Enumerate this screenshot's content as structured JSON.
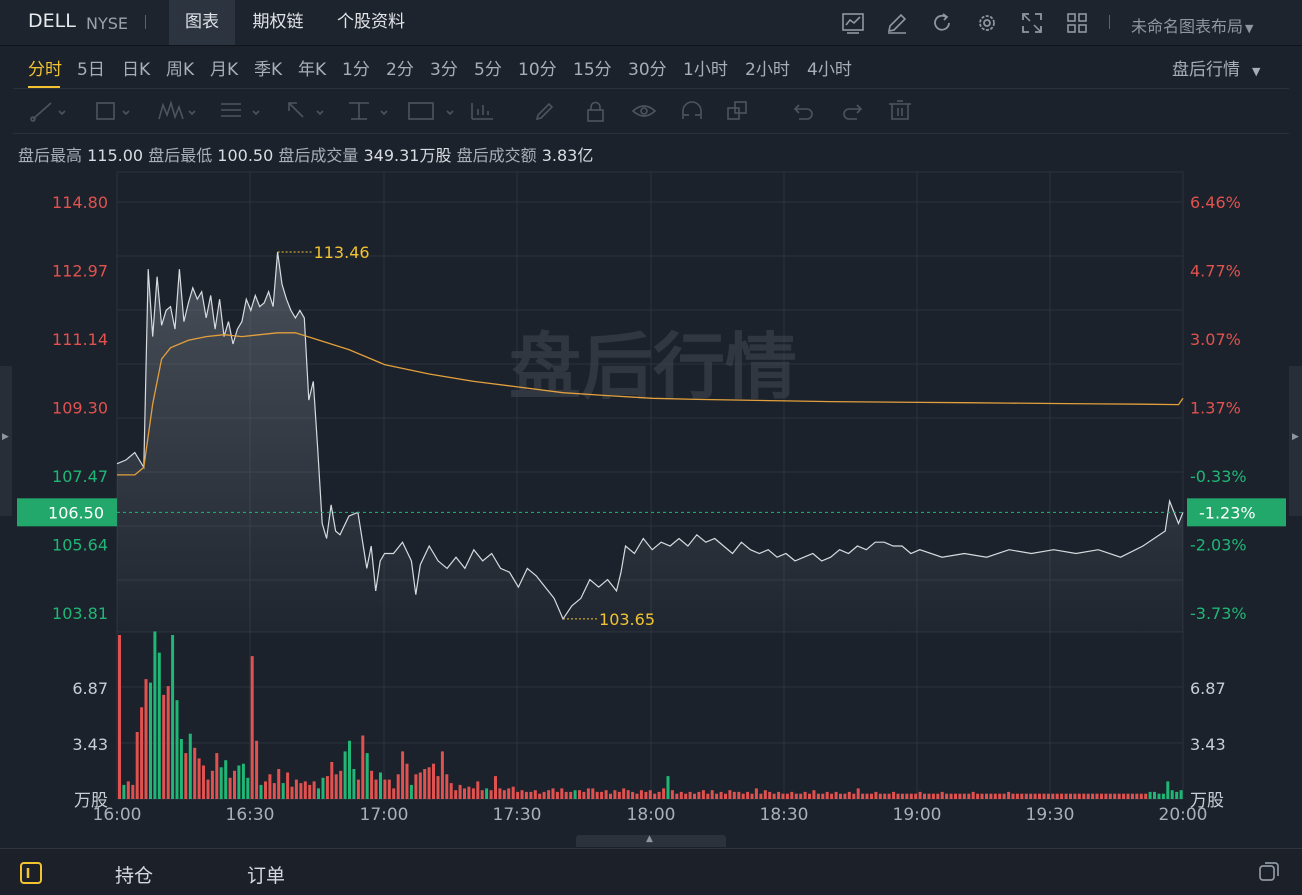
{
  "header": {
    "symbol": "DELL",
    "exchange": "NYSE",
    "tabs": [
      "图表",
      "期权链",
      "个股资料"
    ],
    "active_tab": "图表",
    "layout_name": "未命名图表布局",
    "tools": [
      "indicator-icon",
      "draw-icon",
      "refresh-icon",
      "settings-icon",
      "fullscreen-icon",
      "grid-layout-icon"
    ]
  },
  "periods": {
    "items": [
      "分时",
      "5日",
      "日K",
      "周K",
      "月K",
      "季K",
      "年K",
      "1分",
      "2分",
      "3分",
      "5分",
      "10分",
      "15分",
      "30分",
      "1小时",
      "2小时",
      "4小时"
    ],
    "active": "分时",
    "after_hours_label": "盘后行情"
  },
  "drawing_tools": [
    "line-tool-icon",
    "rect-tool-icon",
    "pattern-tool-icon",
    "fib-tool-icon",
    "arrow-tool-icon",
    "measure-tool-icon",
    "text-tool-icon",
    "chart-tool-icon",
    "pen-icon",
    "lock-icon",
    "eye-icon",
    "magnet-icon",
    "layers-icon",
    "undo-icon",
    "redo-icon",
    "trash-icon"
  ],
  "stats": {
    "high_label": "盘后最高",
    "high_value": "115.00",
    "low_label": "盘后最低",
    "low_value": "100.50",
    "volume_label": "盘后成交量",
    "volume_value": "349.31万股",
    "amount_label": "盘后成交额",
    "amount_value": "3.83亿"
  },
  "watermark": "盘后行情",
  "bottom": {
    "tabs": [
      "持仓",
      "订单"
    ]
  },
  "colors": {
    "up": "#e0524f",
    "down": "#1fb676",
    "price_line": "#d7dbe0",
    "avg_line": "#e2a03d",
    "accent": "#f2c230",
    "current_badge": "#22a86b"
  },
  "chart_data": {
    "type": "line",
    "current_price": "106.50",
    "current_pct": "-1.23%",
    "ylim": [
      103.3,
      115.6
    ],
    "price_ticks": [
      "114.80",
      "112.97",
      "111.14",
      "109.30",
      "107.47",
      "105.64",
      "103.81"
    ],
    "pct_ticks": [
      "6.46%",
      "4.77%",
      "3.07%",
      "1.37%",
      "-0.33%",
      "-2.03%",
      "-3.73%"
    ],
    "volume_ticks": [
      "6.87",
      "3.43"
    ],
    "volume_unit": "万股",
    "x_ticks": [
      "16:00",
      "16:30",
      "17:00",
      "17:30",
      "18:00",
      "18:30",
      "19:00",
      "19:30",
      "20:00"
    ],
    "max_label": "113.46",
    "min_label": "103.65",
    "series": [
      {
        "x": [
          0,
          2,
          4,
          6,
          7,
          8,
          9,
          10,
          11,
          12,
          13,
          14,
          15,
          16,
          17,
          18,
          19,
          20,
          21,
          22,
          23,
          24,
          25,
          26,
          27,
          28,
          29,
          30,
          31,
          32,
          33,
          34,
          35,
          36,
          37,
          38,
          39,
          40,
          41,
          42,
          43,
          44,
          45,
          46,
          47,
          48,
          49,
          50,
          52,
          54,
          56,
          57,
          58,
          59,
          60,
          62,
          64,
          66,
          67,
          68,
          70,
          72,
          74,
          76,
          78,
          80,
          82,
          84,
          86,
          88,
          90,
          92,
          94,
          96,
          98,
          100,
          102,
          104,
          106,
          108,
          110,
          112,
          113,
          114,
          116,
          118,
          120,
          122,
          124,
          126,
          128,
          130,
          132,
          134,
          136,
          138,
          140,
          142,
          144,
          146,
          148,
          150,
          152,
          154,
          156,
          158,
          160,
          162,
          164,
          166,
          168,
          170,
          172,
          174,
          176,
          178,
          180,
          185,
          190,
          195,
          200,
          205,
          210,
          215,
          220,
          225,
          230,
          235,
          236,
          238,
          239
        ],
        "values": [
          107.8,
          107.9,
          108.1,
          107.7,
          113.0,
          111.2,
          112.8,
          111.5,
          111.9,
          112.0,
          111.4,
          113.0,
          111.6,
          112.1,
          112.5,
          112.2,
          112.4,
          111.7,
          112.3,
          111.4,
          112.2,
          111.2,
          111.6,
          111.0,
          111.4,
          111.6,
          112.2,
          111.9,
          112.3,
          112.0,
          112.1,
          112.4,
          112.0,
          113.46,
          112.6,
          112.2,
          111.9,
          111.7,
          111.9,
          111.7,
          109.5,
          110.0,
          108.2,
          106.2,
          105.8,
          106.7,
          106.0,
          105.9,
          106.4,
          106.5,
          105.0,
          105.6,
          104.4,
          105.2,
          105.4,
          105.4,
          105.7,
          105.2,
          104.3,
          105.1,
          105.6,
          105.2,
          105.0,
          105.3,
          105.0,
          105.5,
          105.2,
          105.4,
          105.0,
          104.9,
          104.5,
          105.0,
          104.8,
          104.5,
          104.2,
          103.65,
          104.0,
          104.2,
          104.7,
          104.5,
          104.7,
          104.4,
          104.9,
          105.6,
          105.4,
          105.8,
          105.5,
          105.7,
          105.6,
          105.8,
          105.6,
          105.9,
          105.7,
          105.8,
          105.6,
          105.4,
          105.7,
          105.5,
          105.4,
          105.5,
          105.3,
          105.4,
          105.2,
          105.3,
          105.4,
          105.2,
          105.3,
          105.5,
          105.4,
          105.6,
          105.5,
          105.7,
          105.7,
          105.6,
          105.6,
          105.4,
          105.5,
          105.3,
          105.4,
          105.3,
          105.5,
          105.4,
          105.5,
          105.4,
          105.5,
          105.3,
          105.6,
          106.0,
          106.8,
          106.2,
          106.5
        ],
        "color": "#d7dbe0"
      },
      {
        "x": [
          0,
          4,
          6,
          8,
          10,
          12,
          16,
          20,
          24,
          28,
          32,
          36,
          40,
          44,
          48,
          52,
          56,
          60,
          70,
          80,
          90,
          100,
          110,
          120,
          130,
          140,
          150,
          160,
          170,
          180,
          190,
          200,
          210,
          220,
          230,
          238,
          239
        ],
        "values": [
          107.5,
          107.5,
          107.7,
          109.4,
          110.6,
          110.9,
          111.1,
          111.2,
          111.25,
          111.2,
          111.25,
          111.3,
          111.3,
          111.15,
          111.0,
          110.85,
          110.65,
          110.45,
          110.2,
          110.0,
          109.85,
          109.7,
          109.62,
          109.55,
          109.52,
          109.5,
          109.48,
          109.46,
          109.45,
          109.44,
          109.43,
          109.42,
          109.41,
          109.4,
          109.39,
          109.38,
          109.55
        ],
        "color": "#e2a03d"
      }
    ],
    "volume": {
      "ymax": 7.2,
      "values": [
        9.3,
        0.8,
        1.0,
        0.8,
        3.8,
        5.2,
        6.8,
        6.6,
        9.5,
        8.3,
        5.9,
        6.4,
        9.3,
        5.6,
        3.4,
        2.6,
        3.7,
        2.9,
        2.3,
        1.9,
        1.1,
        1.6,
        2.6,
        1.8,
        2.2,
        1.2,
        1.6,
        1.9,
        2.0,
        1.2,
        8.1,
        3.3,
        0.8,
        1.0,
        1.4,
        0.9,
        1.7,
        0.9,
        1.5,
        0.7,
        1.1,
        0.9,
        1.0,
        0.8,
        1.0,
        0.6,
        1.2,
        1.3,
        2.1,
        1.4,
        1.6,
        2.7,
        3.3,
        1.7,
        1.1,
        3.6,
        2.6,
        1.6,
        1.1,
        1.5,
        1.1,
        1.1,
        0.6,
        1.4,
        2.7,
        2.0,
        0.8,
        1.4,
        1.5,
        1.7,
        1.8,
        2.0,
        1.3,
        2.7,
        1.4,
        0.9,
        0.5,
        0.8,
        0.6,
        0.7,
        0.6,
        1.0,
        0.5,
        0.6,
        0.5,
        1.3,
        0.6,
        0.5,
        0.6,
        0.7,
        0.4,
        0.5,
        0.4,
        0.4,
        0.5,
        0.3,
        0.4,
        0.5,
        0.6,
        0.4,
        0.6,
        0.4,
        0.4,
        0.5,
        0.5,
        0.4,
        0.6,
        0.6,
        0.4,
        0.4,
        0.5,
        0.3,
        0.5,
        0.4,
        0.6,
        0.5,
        0.4,
        0.3,
        0.5,
        0.4,
        0.5,
        0.3,
        0.4,
        0.6,
        1.3,
        0.5,
        0.3,
        0.4,
        0.3,
        0.4,
        0.3,
        0.4,
        0.5,
        0.3,
        0.5,
        0.3,
        0.4,
        0.3,
        0.5,
        0.4,
        0.4,
        0.3,
        0.4,
        0.3,
        0.6,
        0.3,
        0.5,
        0.4,
        0.3,
        0.4,
        0.3,
        0.3,
        0.4,
        0.3,
        0.3,
        0.4,
        0.3,
        0.5,
        0.3,
        0.3,
        0.4,
        0.3,
        0.4,
        0.3,
        0.3,
        0.4,
        0.3,
        0.6,
        0.3,
        0.3,
        0.3,
        0.4,
        0.3,
        0.3,
        0.3,
        0.4,
        0.3,
        0.3,
        0.3,
        0.3,
        0.3,
        0.4,
        0.3,
        0.3,
        0.3,
        0.3,
        0.4,
        0.3,
        0.3,
        0.3,
        0.3,
        0.3,
        0.3,
        0.4,
        0.3,
        0.3,
        0.3,
        0.3,
        0.3,
        0.3,
        0.3,
        0.4,
        0.3,
        0.3,
        0.3,
        0.3,
        0.3,
        0.3,
        0.3,
        0.3,
        0.3,
        0.3,
        0.3,
        0.3,
        0.3,
        0.3,
        0.3,
        0.3,
        0.3,
        0.3,
        0.3,
        0.3,
        0.3,
        0.3,
        0.3,
        0.3,
        0.3,
        0.3,
        0.3,
        0.3,
        0.3,
        0.3,
        0.3,
        0.4,
        0.4,
        0.3,
        0.3,
        1.0,
        0.5,
        0.4,
        0.5
      ],
      "directions": "uduuuuuddduuddduduuuuuudduuddduuduuuuduuuuuuudduuuuddduuduuduuuuuuduuuuuuuuuuuuuuuuduuuuuuuuuuuuuuuuuuuduuuuuuuuuuuuuuuuuuuuduuuuuuuuuuuuuuuuuuuuuuuuuuuuuuuuuuuuuuuuuuuuuuuuuuuuuuuuuuuuuuuuuuuuuuuuuuuuuuuuuuuuuuuuuuuuuuuuuuuuuuuuuuuu"
    }
  }
}
